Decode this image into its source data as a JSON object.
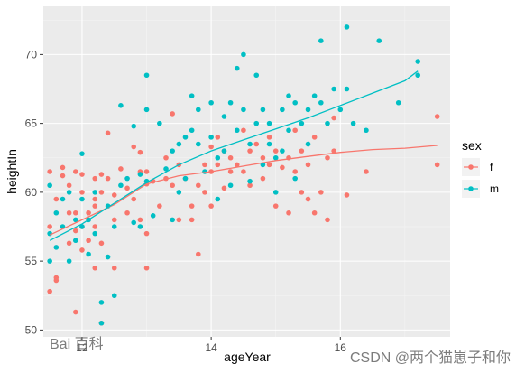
{
  "chart_data": {
    "type": "scatter",
    "title": "",
    "xlabel": "ageYear",
    "ylabel": "heightIn",
    "xlim": [
      11.4,
      17.7
    ],
    "ylim": [
      49.5,
      73.5
    ],
    "x_ticks": [
      12,
      14,
      16
    ],
    "y_ticks": [
      50,
      55,
      60,
      65,
      70
    ],
    "x_tick_labels": [
      "12",
      "14",
      "16"
    ],
    "y_tick_labels": [
      "50",
      "55",
      "60",
      "65",
      "70"
    ],
    "grid": true,
    "legend": {
      "title": "sex",
      "position": "right"
    },
    "series": [
      {
        "name": "f",
        "color": "#F8766D",
        "points": [
          [
            11.5,
            61.5
          ],
          [
            11.5,
            57.5
          ],
          [
            11.5,
            52.8
          ],
          [
            11.6,
            53.6
          ],
          [
            11.6,
            53.8
          ],
          [
            11.6,
            59.5
          ],
          [
            11.7,
            61.8
          ],
          [
            11.7,
            61.2
          ],
          [
            11.8,
            60.5
          ],
          [
            11.8,
            58.5
          ],
          [
            11.8,
            56.3
          ],
          [
            11.9,
            61.5
          ],
          [
            11.9,
            58.5
          ],
          [
            11.9,
            57.2
          ],
          [
            11.9,
            51.3
          ],
          [
            12.0,
            61.3
          ],
          [
            12.0,
            60.0
          ],
          [
            12.0,
            57.5
          ],
          [
            12.0,
            55.8
          ],
          [
            12.1,
            58.5
          ],
          [
            12.1,
            56.5
          ],
          [
            12.2,
            61.0
          ],
          [
            12.2,
            59.5
          ],
          [
            12.2,
            59.0
          ],
          [
            12.2,
            57.5
          ],
          [
            12.2,
            54.5
          ],
          [
            12.3,
            61.3
          ],
          [
            12.3,
            60.0
          ],
          [
            12.3,
            56.3
          ],
          [
            12.3,
            50.5
          ],
          [
            12.4,
            64.3
          ],
          [
            12.4,
            61.0
          ],
          [
            12.5,
            59.8
          ],
          [
            12.5,
            58.0
          ],
          [
            12.5,
            54.5
          ],
          [
            12.6,
            61.7
          ],
          [
            12.7,
            60.3
          ],
          [
            12.7,
            58.5
          ],
          [
            12.8,
            63.3
          ],
          [
            12.8,
            59.5
          ],
          [
            12.9,
            62.9
          ],
          [
            12.9,
            61.5
          ],
          [
            12.9,
            58.0
          ],
          [
            13.0,
            61.5
          ],
          [
            13.0,
            60.6
          ],
          [
            13.0,
            57.0
          ],
          [
            13.0,
            54.5
          ],
          [
            13.1,
            60.8
          ],
          [
            13.2,
            59.0
          ],
          [
            13.3,
            62.5
          ],
          [
            13.3,
            61.0
          ],
          [
            13.4,
            65.7
          ],
          [
            13.4,
            60.5
          ],
          [
            13.5,
            62.0
          ],
          [
            13.5,
            58.0
          ],
          [
            13.6,
            61.0
          ],
          [
            13.7,
            59.0
          ],
          [
            13.7,
            58.0
          ],
          [
            13.8,
            60.5
          ],
          [
            13.8,
            55.5
          ],
          [
            13.9,
            62.0
          ],
          [
            13.9,
            60.0
          ],
          [
            14.0,
            63.3
          ],
          [
            14.0,
            61.5
          ],
          [
            14.0,
            59.0
          ],
          [
            14.1,
            64.0
          ],
          [
            14.1,
            62.0
          ],
          [
            14.2,
            63.0
          ],
          [
            14.2,
            60.3
          ],
          [
            14.3,
            62.5
          ],
          [
            14.3,
            61.5
          ],
          [
            14.4,
            62.0
          ],
          [
            14.5,
            64.5
          ],
          [
            14.5,
            61.5
          ],
          [
            14.6,
            63.0
          ],
          [
            14.6,
            60.5
          ],
          [
            14.7,
            63.5
          ],
          [
            14.8,
            62.5
          ],
          [
            14.8,
            61.0
          ],
          [
            14.9,
            64.0
          ],
          [
            14.9,
            62.0
          ],
          [
            15.0,
            63.0
          ],
          [
            15.0,
            59.0
          ],
          [
            15.1,
            61.8
          ],
          [
            15.2,
            58.5
          ],
          [
            15.2,
            62.5
          ],
          [
            15.3,
            64.5
          ],
          [
            15.3,
            61.5
          ],
          [
            15.4,
            60.0
          ],
          [
            15.4,
            63.0
          ],
          [
            15.5,
            62.0
          ],
          [
            15.5,
            59.5
          ],
          [
            15.6,
            64.0
          ],
          [
            15.6,
            58.5
          ],
          [
            15.7,
            60.0
          ],
          [
            15.8,
            62.5
          ],
          [
            15.8,
            58.0
          ],
          [
            15.9,
            65.4
          ],
          [
            15.9,
            63.0
          ],
          [
            16.1,
            59.8
          ],
          [
            16.4,
            61.5
          ],
          [
            17.5,
            65.5
          ],
          [
            17.5,
            62.0
          ]
        ],
        "fit_curve": [
          [
            11.5,
            56.9
          ],
          [
            12.0,
            58.0
          ],
          [
            12.5,
            59.1
          ],
          [
            13.0,
            60.6
          ],
          [
            13.5,
            61.2
          ],
          [
            14.0,
            61.5
          ],
          [
            14.5,
            61.9
          ],
          [
            15.0,
            62.3
          ],
          [
            15.5,
            62.6
          ],
          [
            16.0,
            62.9
          ],
          [
            16.5,
            63.1
          ],
          [
            17.0,
            63.2
          ],
          [
            17.5,
            63.4
          ]
        ]
      },
      {
        "name": "m",
        "color": "#00BFC4",
        "points": [
          [
            11.5,
            60.5
          ],
          [
            11.5,
            57.0
          ],
          [
            11.5,
            55.0
          ],
          [
            11.6,
            58.5
          ],
          [
            11.6,
            56.0
          ],
          [
            11.7,
            59.5
          ],
          [
            11.7,
            57.5
          ],
          [
            11.8,
            60.0
          ],
          [
            11.8,
            55.0
          ],
          [
            11.9,
            58.0
          ],
          [
            11.9,
            56.5
          ],
          [
            12.0,
            62.8
          ],
          [
            12.0,
            59.5
          ],
          [
            12.0,
            57.5
          ],
          [
            12.1,
            58.0
          ],
          [
            12.1,
            55.5
          ],
          [
            12.2,
            60.0
          ],
          [
            12.2,
            57.0
          ],
          [
            12.3,
            52.0
          ],
          [
            12.3,
            50.5
          ],
          [
            12.4,
            59.0
          ],
          [
            12.4,
            55.3
          ],
          [
            12.5,
            52.5
          ],
          [
            12.5,
            57.5
          ],
          [
            12.6,
            66.3
          ],
          [
            12.6,
            60.5
          ],
          [
            12.7,
            61.0
          ],
          [
            12.8,
            64.8
          ],
          [
            12.8,
            57.8
          ],
          [
            12.9,
            61.3
          ],
          [
            12.9,
            57.5
          ],
          [
            13.0,
            68.5
          ],
          [
            13.0,
            66.0
          ],
          [
            13.0,
            60.8
          ],
          [
            13.1,
            58.3
          ],
          [
            13.2,
            65.0
          ],
          [
            13.3,
            61.7
          ],
          [
            13.4,
            58.0
          ],
          [
            13.4,
            63.0
          ],
          [
            13.5,
            63.5
          ],
          [
            13.5,
            60.0
          ],
          [
            13.6,
            64.0
          ],
          [
            13.6,
            61.0
          ],
          [
            13.7,
            67.0
          ],
          [
            13.7,
            64.5
          ],
          [
            13.8,
            66.0
          ],
          [
            13.8,
            63.5
          ],
          [
            13.9,
            61.5
          ],
          [
            14.0,
            66.5
          ],
          [
            14.0,
            64.0
          ],
          [
            14.1,
            62.5
          ],
          [
            14.1,
            59.5
          ],
          [
            14.2,
            65.5
          ],
          [
            14.2,
            63.0
          ],
          [
            14.3,
            66.5
          ],
          [
            14.3,
            60.5
          ],
          [
            14.4,
            69.0
          ],
          [
            14.4,
            64.5
          ],
          [
            14.5,
            70.0
          ],
          [
            14.5,
            66.0
          ],
          [
            14.6,
            63.5
          ],
          [
            14.6,
            60.8
          ],
          [
            14.7,
            68.5
          ],
          [
            14.7,
            65.0
          ],
          [
            14.8,
            66.0
          ],
          [
            14.8,
            62.0
          ],
          [
            14.9,
            65.0
          ],
          [
            14.9,
            63.5
          ],
          [
            15.0,
            62.5
          ],
          [
            15.0,
            60.0
          ],
          [
            15.1,
            66.0
          ],
          [
            15.1,
            63.0
          ],
          [
            15.2,
            67.0
          ],
          [
            15.2,
            64.5
          ],
          [
            15.3,
            66.5
          ],
          [
            15.3,
            61.0
          ],
          [
            15.4,
            65.0
          ],
          [
            15.5,
            66.0
          ],
          [
            15.5,
            63.5
          ],
          [
            15.6,
            67.0
          ],
          [
            15.7,
            71.0
          ],
          [
            15.7,
            66.5
          ],
          [
            15.8,
            65.0
          ],
          [
            15.9,
            67.5
          ],
          [
            16.0,
            66.0
          ],
          [
            16.1,
            72.0
          ],
          [
            16.1,
            67.5
          ],
          [
            16.2,
            65.0
          ],
          [
            16.4,
            64.5
          ],
          [
            16.6,
            71.0
          ],
          [
            16.9,
            66.5
          ],
          [
            17.2,
            69.5
          ],
          [
            17.2,
            68.5
          ]
        ],
        "fit_curve": [
          [
            11.5,
            56.5
          ],
          [
            12.0,
            57.7
          ],
          [
            12.5,
            59.2
          ],
          [
            13.0,
            60.7
          ],
          [
            13.5,
            62.0
          ],
          [
            14.0,
            63.0
          ],
          [
            14.5,
            63.8
          ],
          [
            15.0,
            64.6
          ],
          [
            15.5,
            65.4
          ],
          [
            16.0,
            66.3
          ],
          [
            16.5,
            67.2
          ],
          [
            17.0,
            68.1
          ],
          [
            17.2,
            68.8
          ]
        ]
      }
    ]
  },
  "watermarks": [
    "Bai 百科",
    "CSDN @两个猫崽子和你"
  ]
}
